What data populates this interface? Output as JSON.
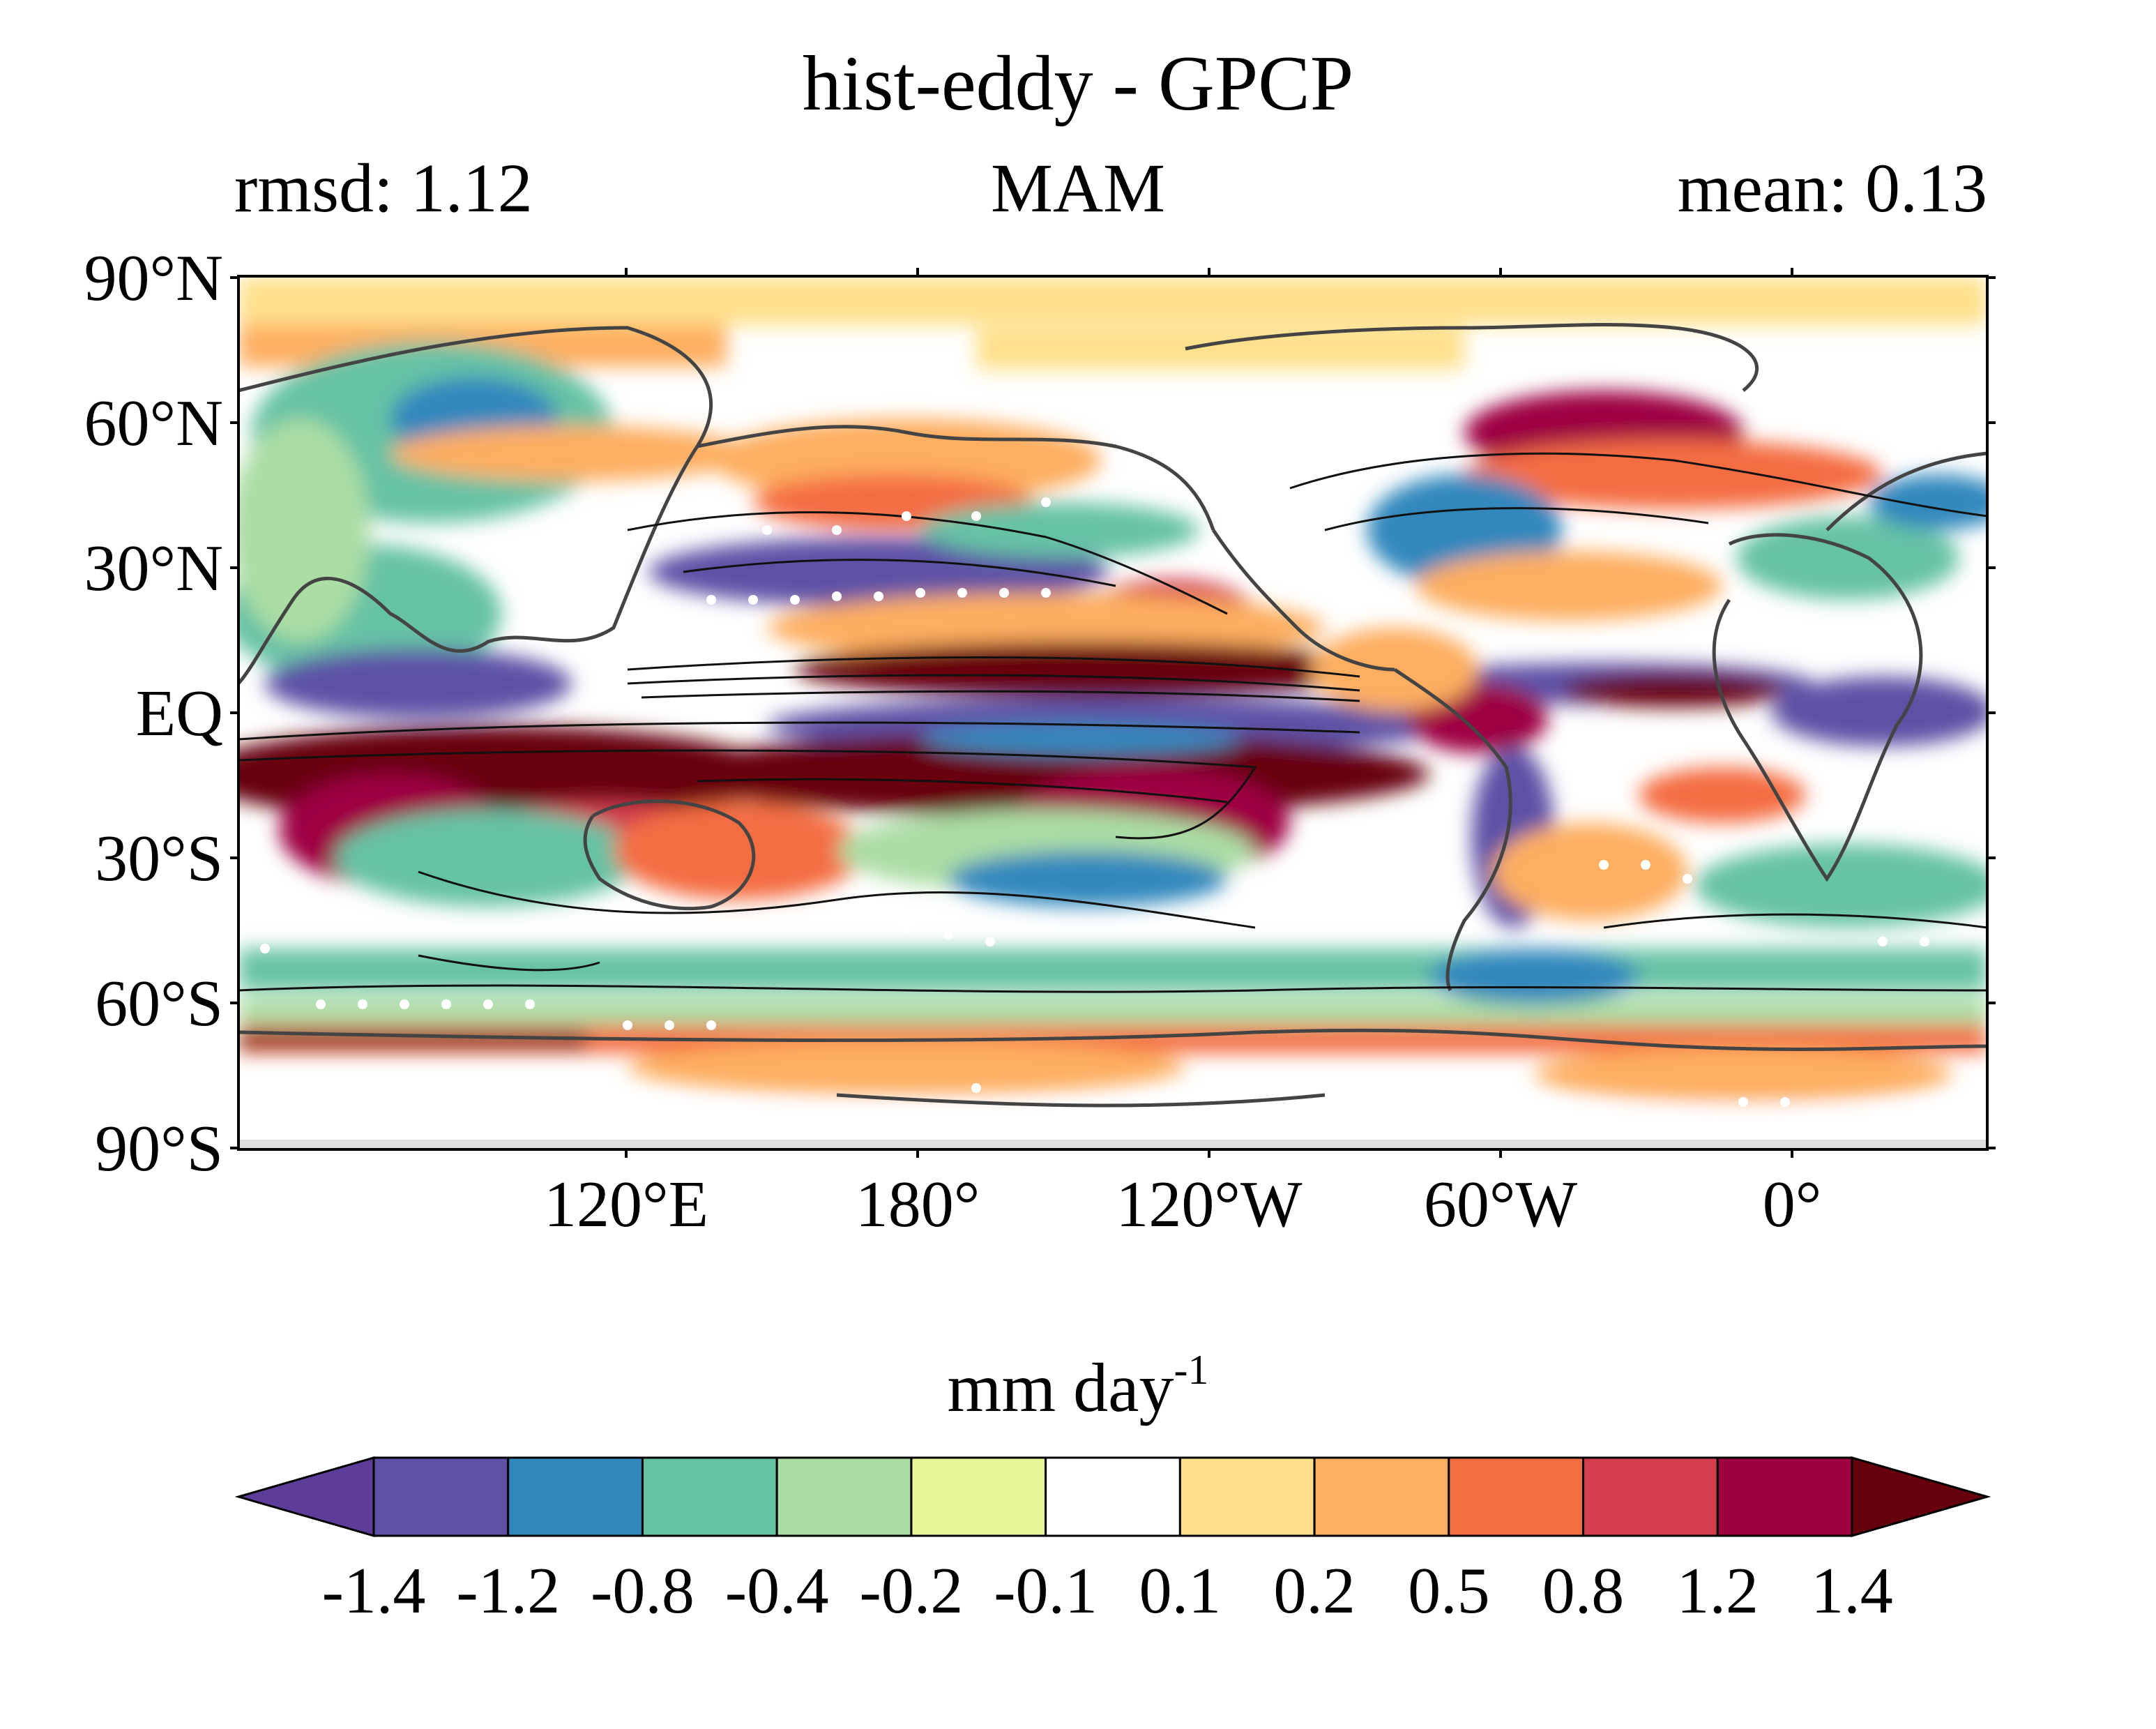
{
  "title": "hist-eddy - GPCP",
  "subtitle_left": "rmsd: 1.12",
  "subtitle_center": "MAM",
  "subtitle_right": "mean: 0.13",
  "lat_ticks": [
    "90°N",
    "60°N",
    "30°N",
    "EQ",
    "30°S",
    "60°S",
    "90°S"
  ],
  "lon_ticks": [
    "120°E",
    "180°",
    "120°W",
    "60°W",
    "0°"
  ],
  "colorbar": {
    "units_base": "mm day",
    "units_exp": "-1",
    "ticks": [
      "-1.4",
      "-1.2",
      "-0.8",
      "-0.4",
      "-0.2",
      "-0.1",
      "0.1",
      "0.2",
      "0.5",
      "0.8",
      "1.2",
      "1.4"
    ],
    "colors": [
      "#5e3c99",
      "#5d51a6",
      "#3288bd",
      "#66c2a5",
      "#abdda4",
      "#e6f598",
      "#ffffff",
      "#fee08b",
      "#fdae61",
      "#f46d43",
      "#d53e4f",
      "#9e0142",
      "#67000d"
    ]
  }
}
